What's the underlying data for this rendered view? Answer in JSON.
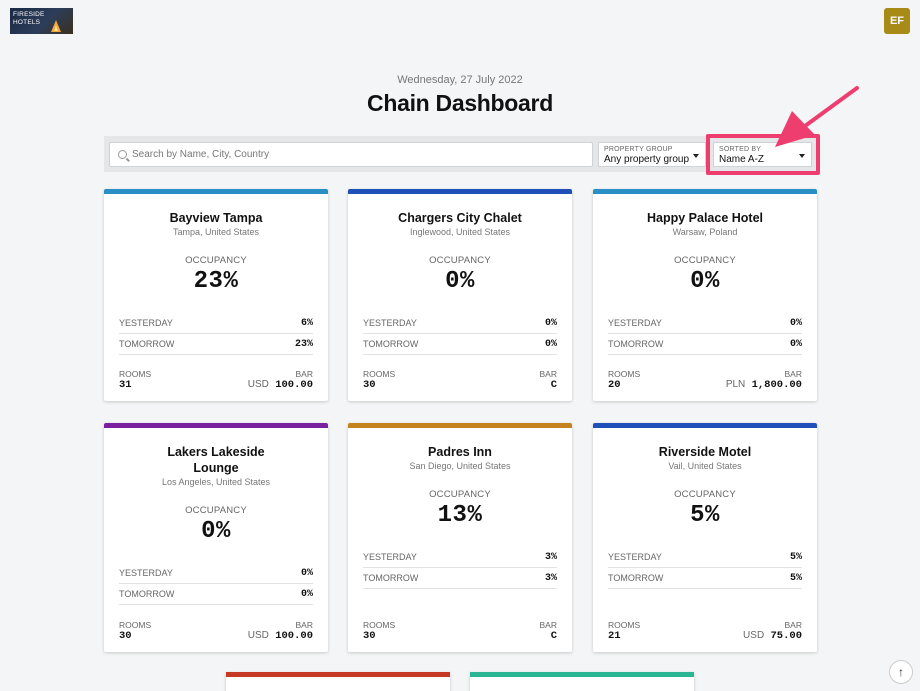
{
  "brand": {
    "logo_text": "FIRESIDE HOTELS",
    "logo_lines": [
      "FIRESIDE",
      "HOTELS"
    ]
  },
  "user": {
    "initials": "EF",
    "color": "#a88a16"
  },
  "header": {
    "date": "Wednesday, 27 July 2022",
    "title": "Chain Dashboard"
  },
  "filters": {
    "search_placeholder": "Search by Name, City, Country",
    "property_group": {
      "label": "PROPERTY GROUP",
      "value": "Any property group"
    },
    "sorted_by": {
      "label": "SORTED BY",
      "value": "Name A-Z"
    }
  },
  "labels": {
    "occupancy": "OCCUPANCY",
    "yesterday": "YESTERDAY",
    "tomorrow": "TOMORROW",
    "rooms": "ROOMS",
    "bar": "BAR"
  },
  "hotels": [
    {
      "name": "Bayview Tampa",
      "location": "Tampa, United States",
      "occupancy": "23%",
      "yesterday": "6%",
      "tomorrow": "23%",
      "rooms": "31",
      "bar_currency": "USD",
      "bar_value": "100.00",
      "color": "#2a8fc4"
    },
    {
      "name": "Chargers City Chalet",
      "location": "Inglewood, United States",
      "occupancy": "0%",
      "yesterday": "0%",
      "tomorrow": "0%",
      "rooms": "30",
      "bar_currency": "",
      "bar_value": "C",
      "color": "#1f4fb8"
    },
    {
      "name": "Happy Palace Hotel",
      "location": "Warsaw, Poland",
      "occupancy": "0%",
      "yesterday": "0%",
      "tomorrow": "0%",
      "rooms": "20",
      "bar_currency": "PLN",
      "bar_value": "1,800.00",
      "color": "#2a8fc4"
    },
    {
      "name": "Lakers Lakeside Lounge",
      "location": "Los Angeles, United States",
      "occupancy": "0%",
      "yesterday": "0%",
      "tomorrow": "0%",
      "rooms": "30",
      "bar_currency": "USD",
      "bar_value": "100.00",
      "color": "#7a1f9e"
    },
    {
      "name": "Padres Inn",
      "location": "San Diego, United States",
      "occupancy": "13%",
      "yesterday": "3%",
      "tomorrow": "3%",
      "rooms": "30",
      "bar_currency": "",
      "bar_value": "C",
      "color": "#c4831f"
    },
    {
      "name": "Riverside Motel",
      "location": "Vail, United States",
      "occupancy": "5%",
      "yesterday": "5%",
      "tomorrow": "5%",
      "rooms": "21",
      "bar_currency": "USD",
      "bar_value": "75.00",
      "color": "#1f4fb8"
    }
  ],
  "partial_cards": [
    {
      "color": "#c43a25"
    },
    {
      "color": "#2ab594"
    }
  ],
  "annotation": {
    "color": "#ee3e70"
  },
  "scroll_top": {
    "glyph": "↑"
  }
}
